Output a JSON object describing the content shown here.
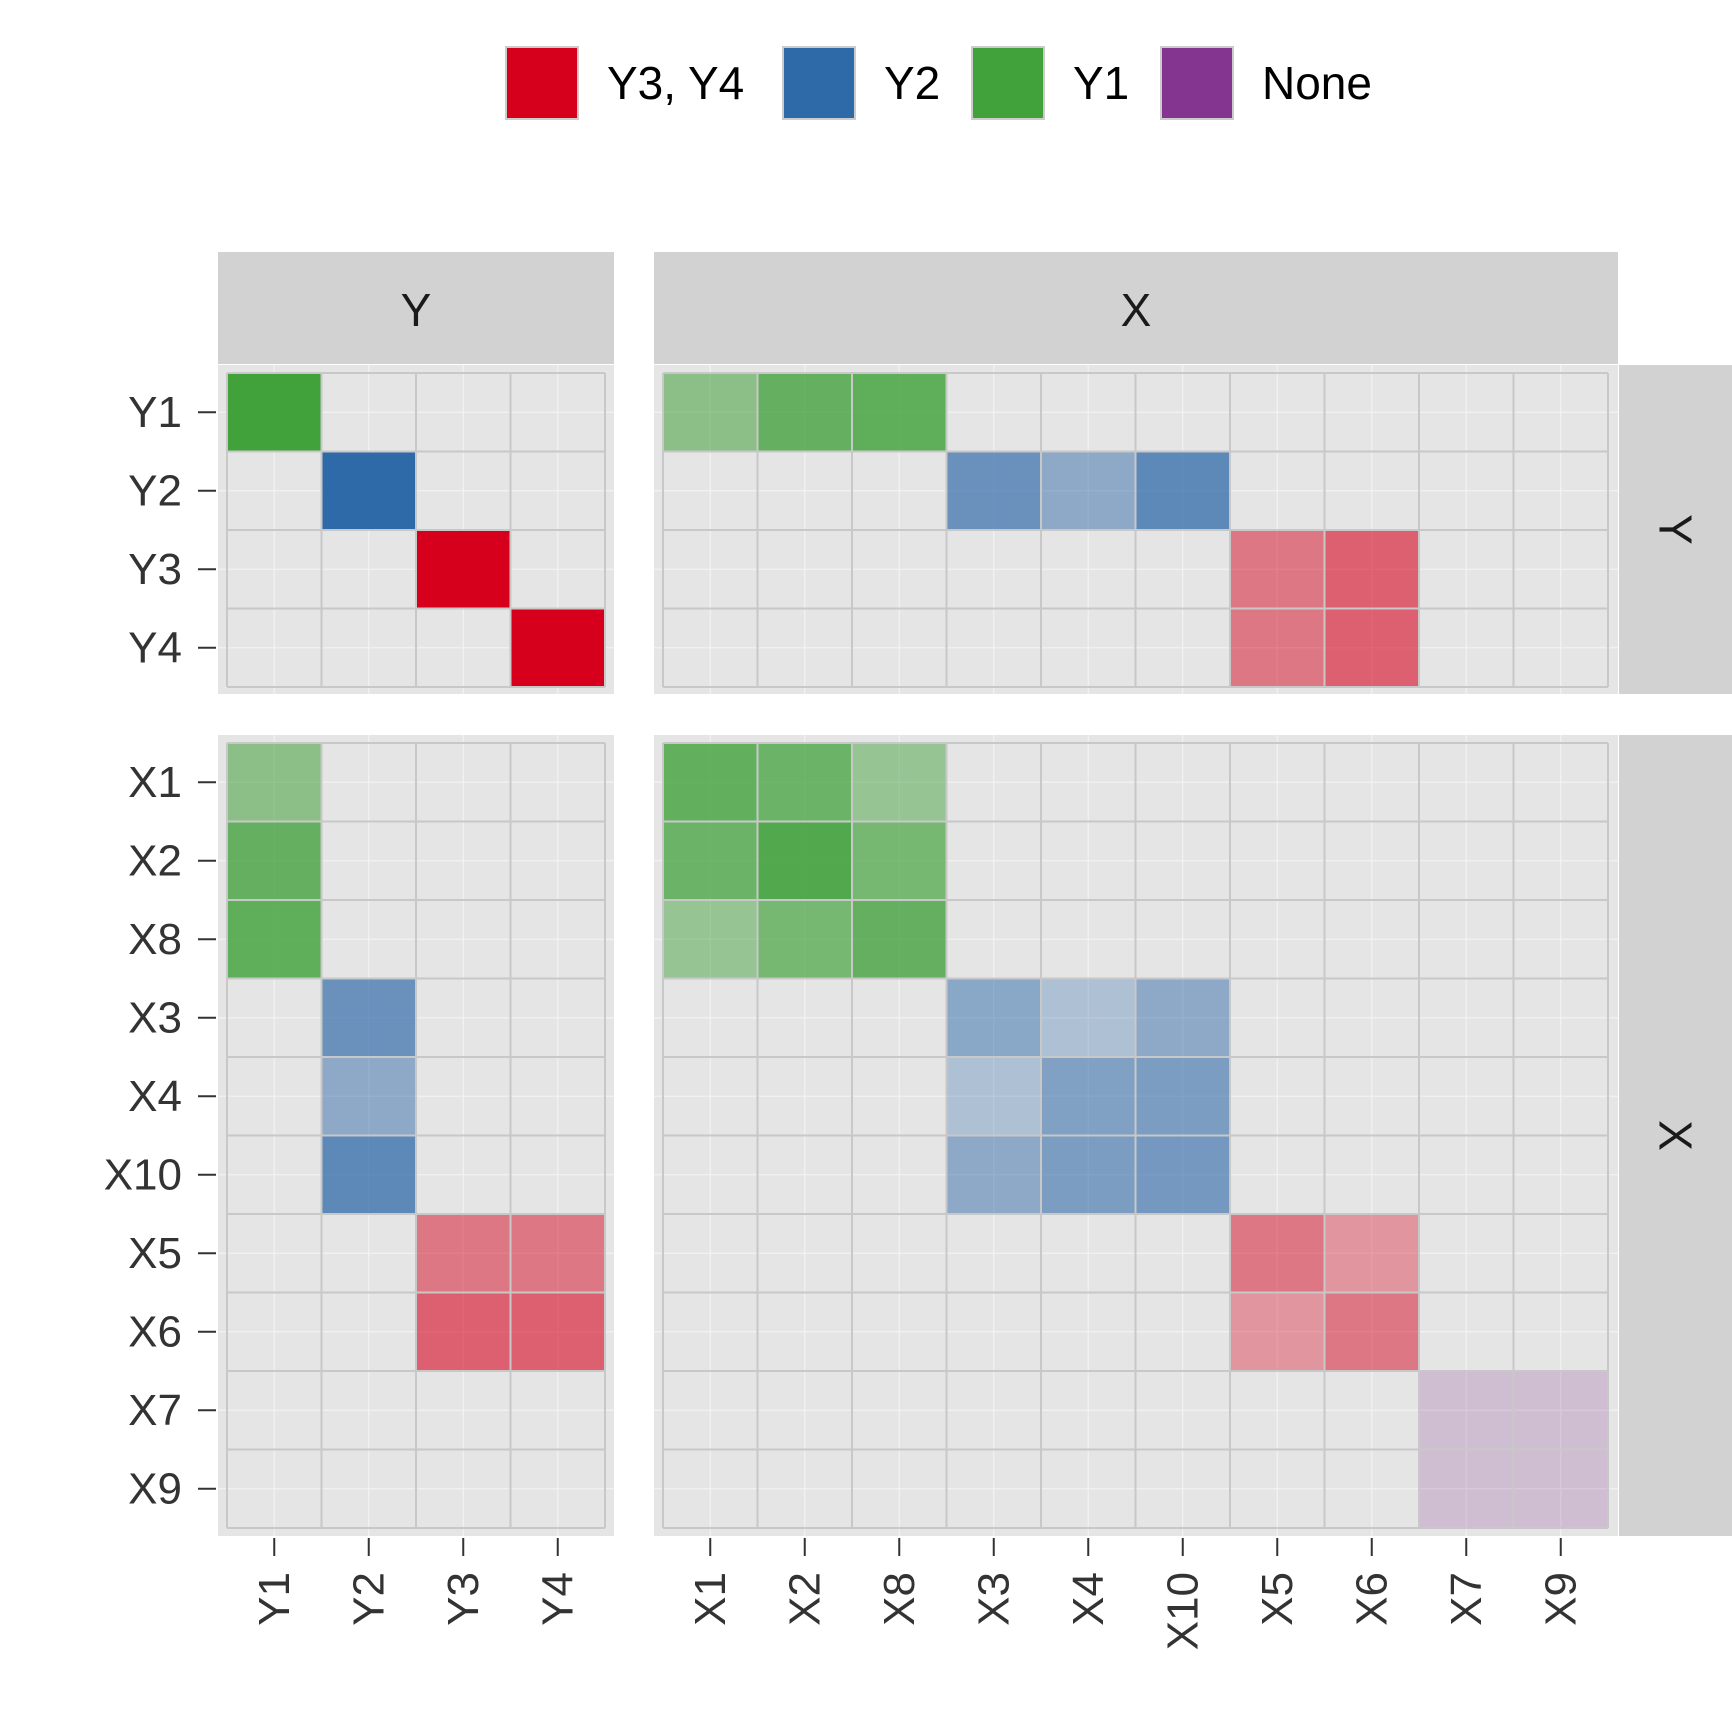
{
  "chart_data": {
    "type": "heatmap",
    "legend": {
      "position": "top",
      "entries": [
        {
          "label": "Y3, Y4",
          "color": "#d7001c"
        },
        {
          "label": "Y2",
          "color": "#2e69a8"
        },
        {
          "label": "Y1",
          "color": "#41a13b"
        },
        {
          "label": "None",
          "color": "#84358f"
        }
      ]
    },
    "facet_columns": [
      {
        "label": "Y",
        "categories": [
          "Y1",
          "Y2",
          "Y3",
          "Y4"
        ]
      },
      {
        "label": "X",
        "categories": [
          "X1",
          "X2",
          "X8",
          "X3",
          "X4",
          "X10",
          "X5",
          "X6",
          "X7",
          "X9"
        ]
      }
    ],
    "facet_rows": [
      {
        "label": "Y",
        "categories": [
          "Y1",
          "Y2",
          "Y3",
          "Y4"
        ]
      },
      {
        "label": "X",
        "categories": [
          "X1",
          "X2",
          "X8",
          "X3",
          "X4",
          "X10",
          "X5",
          "X6",
          "X7",
          "X9"
        ]
      }
    ],
    "grid": true,
    "cells": [
      {
        "row": "Y1",
        "col": "Y1",
        "group": "Y1",
        "opacity": 1.0
      },
      {
        "row": "Y2",
        "col": "Y2",
        "group": "Y2",
        "opacity": 1.0
      },
      {
        "row": "Y3",
        "col": "Y3",
        "group": "Y3, Y4",
        "opacity": 1.0
      },
      {
        "row": "Y4",
        "col": "Y4",
        "group": "Y3, Y4",
        "opacity": 1.0
      },
      {
        "row": "Y1",
        "col": "X1",
        "group": "Y1",
        "opacity": 0.55
      },
      {
        "row": "Y1",
        "col": "X2",
        "group": "Y1",
        "opacity": 0.78
      },
      {
        "row": "Y1",
        "col": "X8",
        "group": "Y1",
        "opacity": 0.82
      },
      {
        "row": "Y2",
        "col": "X3",
        "group": "Y2",
        "opacity": 0.68
      },
      {
        "row": "Y2",
        "col": "X4",
        "group": "Y2",
        "opacity": 0.48
      },
      {
        "row": "Y2",
        "col": "X10",
        "group": "Y2",
        "opacity": 0.74
      },
      {
        "row": "Y3",
        "col": "X5",
        "group": "Y3, Y4",
        "opacity": 0.48
      },
      {
        "row": "Y3",
        "col": "X6",
        "group": "Y3, Y4",
        "opacity": 0.58
      },
      {
        "row": "Y4",
        "col": "X5",
        "group": "Y3, Y4",
        "opacity": 0.48
      },
      {
        "row": "Y4",
        "col": "X6",
        "group": "Y3, Y4",
        "opacity": 0.58
      },
      {
        "row": "X1",
        "col": "Y1",
        "group": "Y1",
        "opacity": 0.55
      },
      {
        "row": "X2",
        "col": "Y1",
        "group": "Y1",
        "opacity": 0.78
      },
      {
        "row": "X8",
        "col": "Y1",
        "group": "Y1",
        "opacity": 0.82
      },
      {
        "row": "X3",
        "col": "Y2",
        "group": "Y2",
        "opacity": 0.68
      },
      {
        "row": "X4",
        "col": "Y2",
        "group": "Y2",
        "opacity": 0.48
      },
      {
        "row": "X10",
        "col": "Y2",
        "group": "Y2",
        "opacity": 0.74
      },
      {
        "row": "X5",
        "col": "Y3",
        "group": "Y3, Y4",
        "opacity": 0.48
      },
      {
        "row": "X5",
        "col": "Y4",
        "group": "Y3, Y4",
        "opacity": 0.48
      },
      {
        "row": "X6",
        "col": "Y3",
        "group": "Y3, Y4",
        "opacity": 0.58
      },
      {
        "row": "X6",
        "col": "Y4",
        "group": "Y3, Y4",
        "opacity": 0.58
      },
      {
        "row": "X1",
        "col": "X1",
        "group": "Y1",
        "opacity": 0.8
      },
      {
        "row": "X1",
        "col": "X2",
        "group": "Y1",
        "opacity": 0.75
      },
      {
        "row": "X1",
        "col": "X8",
        "group": "Y1",
        "opacity": 0.48
      },
      {
        "row": "X2",
        "col": "X1",
        "group": "Y1",
        "opacity": 0.75
      },
      {
        "row": "X2",
        "col": "X2",
        "group": "Y1",
        "opacity": 0.9
      },
      {
        "row": "X2",
        "col": "X8",
        "group": "Y1",
        "opacity": 0.68
      },
      {
        "row": "X8",
        "col": "X1",
        "group": "Y1",
        "opacity": 0.48
      },
      {
        "row": "X8",
        "col": "X2",
        "group": "Y1",
        "opacity": 0.68
      },
      {
        "row": "X8",
        "col": "X8",
        "group": "Y1",
        "opacity": 0.78
      },
      {
        "row": "X3",
        "col": "X3",
        "group": "Y2",
        "opacity": 0.5
      },
      {
        "row": "X3",
        "col": "X4",
        "group": "Y2",
        "opacity": 0.3
      },
      {
        "row": "X3",
        "col": "X10",
        "group": "Y2",
        "opacity": 0.48
      },
      {
        "row": "X4",
        "col": "X3",
        "group": "Y2",
        "opacity": 0.3
      },
      {
        "row": "X4",
        "col": "X4",
        "group": "Y2",
        "opacity": 0.55
      },
      {
        "row": "X4",
        "col": "X10",
        "group": "Y2",
        "opacity": 0.58
      },
      {
        "row": "X10",
        "col": "X3",
        "group": "Y2",
        "opacity": 0.48
      },
      {
        "row": "X10",
        "col": "X4",
        "group": "Y2",
        "opacity": 0.58
      },
      {
        "row": "X10",
        "col": "X10",
        "group": "Y2",
        "opacity": 0.62
      },
      {
        "row": "X5",
        "col": "X5",
        "group": "Y3, Y4",
        "opacity": 0.48
      },
      {
        "row": "X5",
        "col": "X6",
        "group": "Y3, Y4",
        "opacity": 0.35
      },
      {
        "row": "X6",
        "col": "X5",
        "group": "Y3, Y4",
        "opacity": 0.35
      },
      {
        "row": "X6",
        "col": "X6",
        "group": "Y3, Y4",
        "opacity": 0.48
      },
      {
        "row": "X7",
        "col": "X7",
        "group": "None",
        "opacity": 0.22
      },
      {
        "row": "X7",
        "col": "X9",
        "group": "None",
        "opacity": 0.22
      },
      {
        "row": "X9",
        "col": "X7",
        "group": "None",
        "opacity": 0.22
      },
      {
        "row": "X9",
        "col": "X9",
        "group": "None",
        "opacity": 0.22
      }
    ]
  }
}
